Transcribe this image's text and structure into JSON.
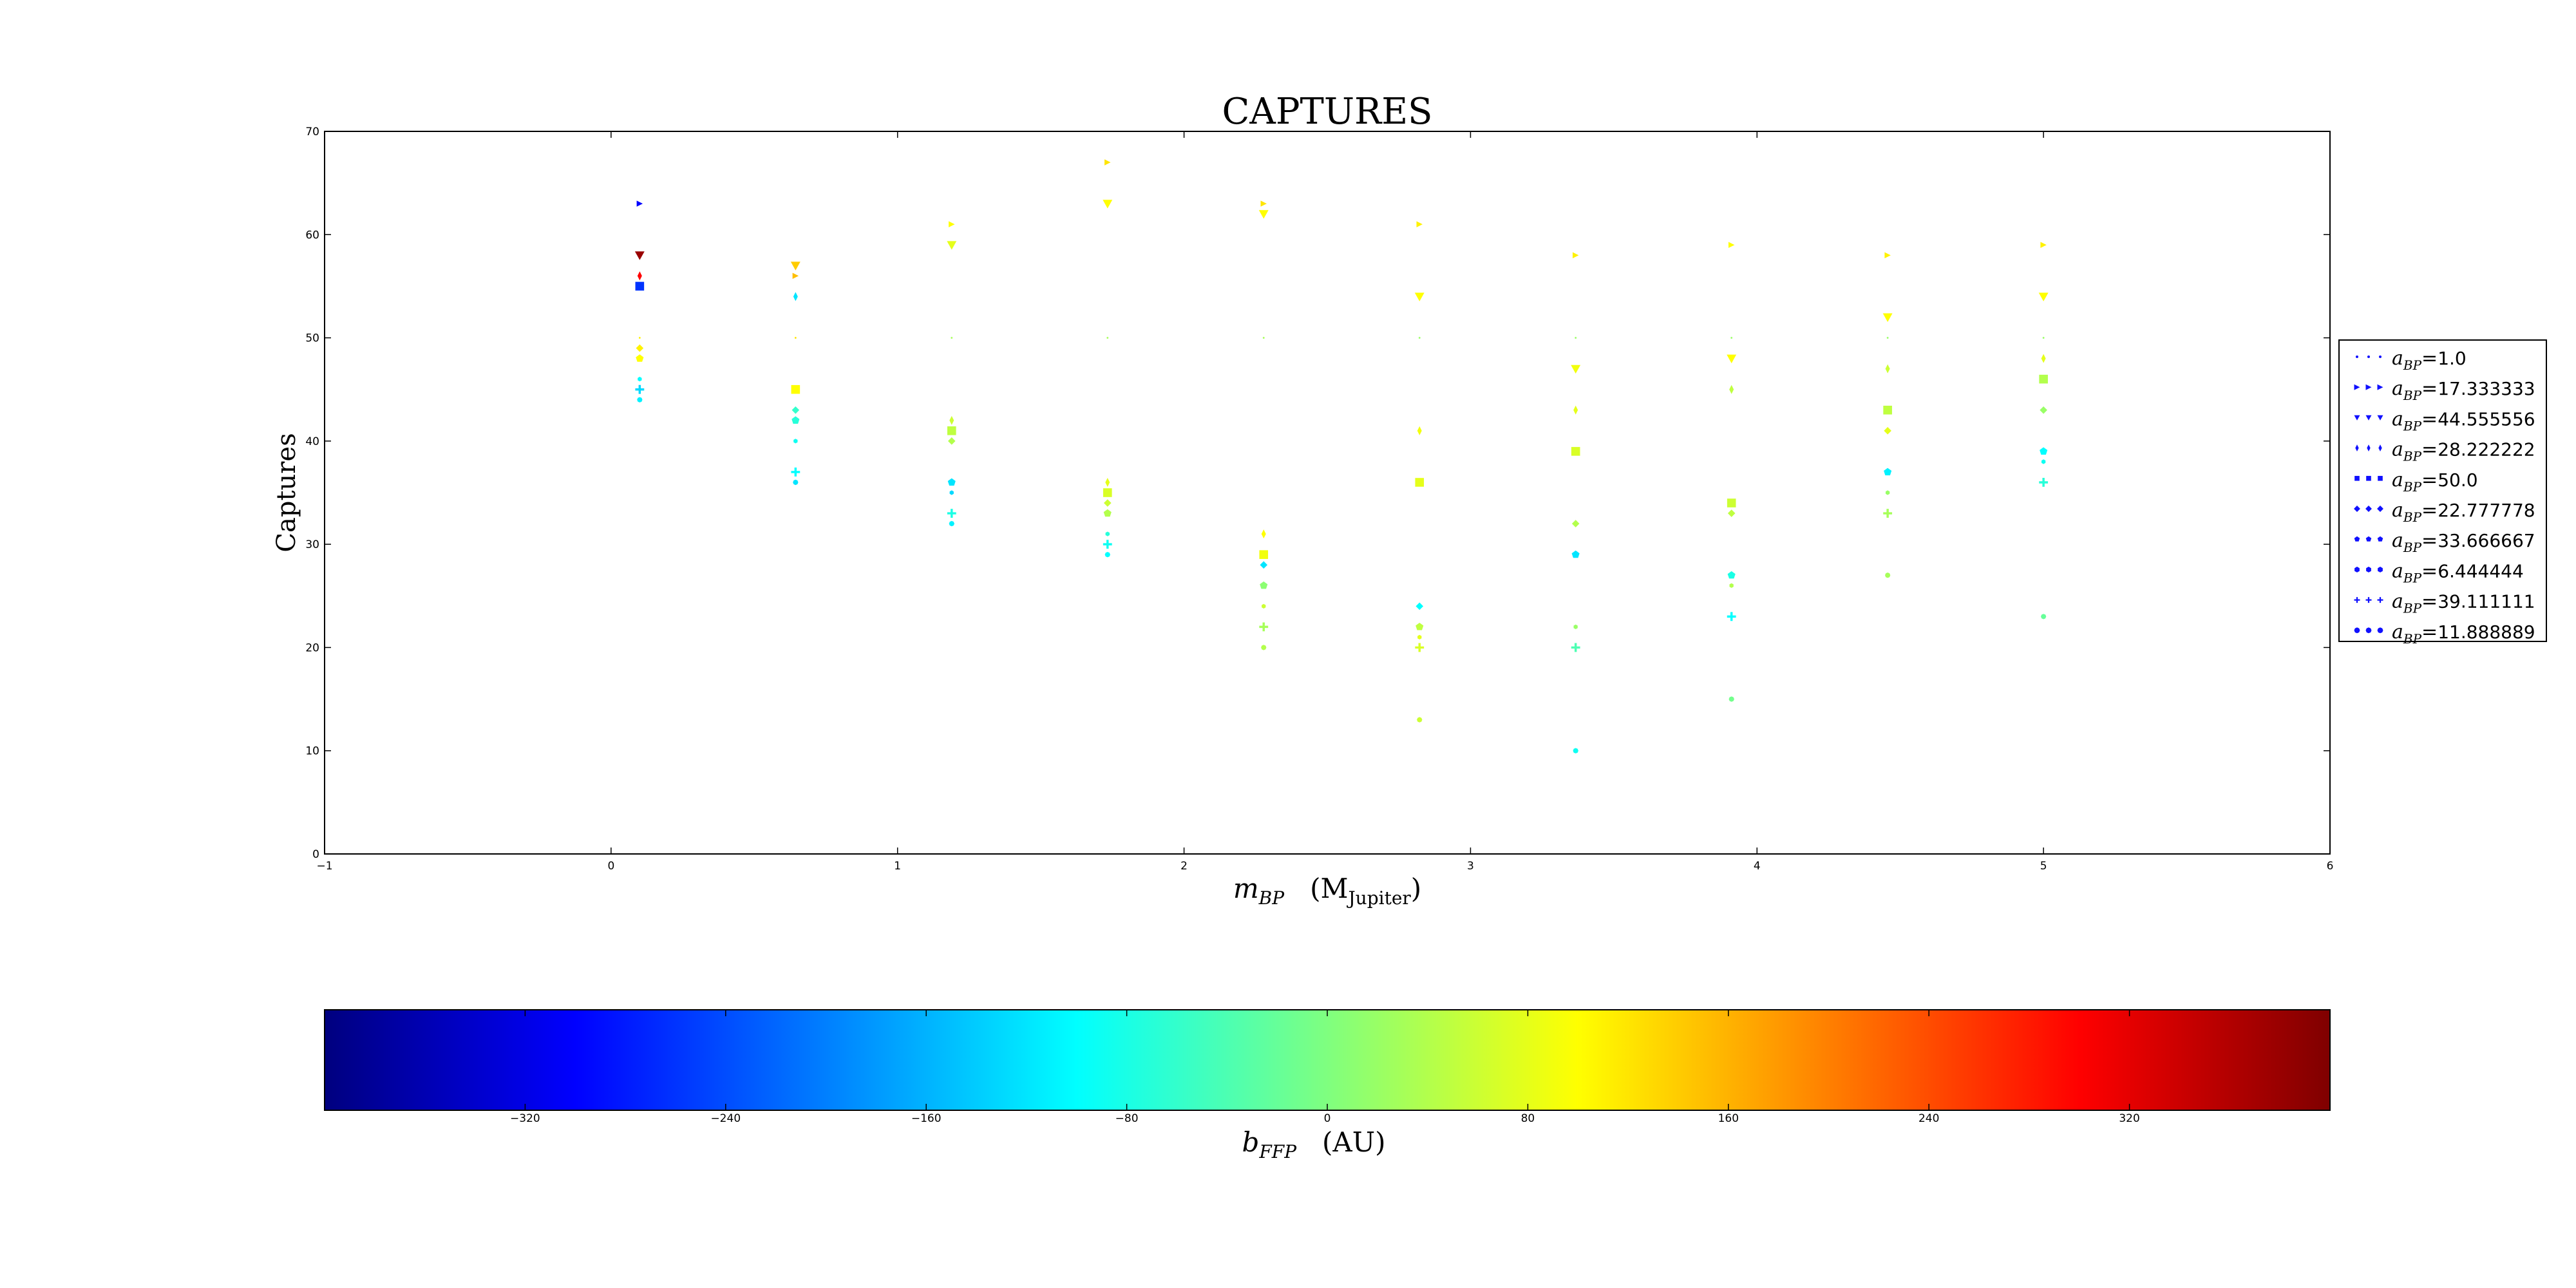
{
  "chart_data": {
    "type": "scatter",
    "title": "CAPTURES",
    "xlabel": {
      "symbol": "m",
      "sub": "BP",
      "unit_open": "(M",
      "unit_sub": "Jupiter",
      "unit_close": ")"
    },
    "ylabel": "Captures",
    "xlim": [
      -1,
      6
    ],
    "ylim": [
      0,
      70
    ],
    "xticks": [
      -1,
      0,
      1,
      2,
      3,
      4,
      5,
      6
    ],
    "yticks": [
      0,
      10,
      20,
      30,
      40,
      50,
      60,
      70
    ],
    "grid": false,
    "legend_position": "right-outside",
    "series": [
      {
        "name": "1.0",
        "marker": "point",
        "x": [
          0.1,
          0.644,
          1.189,
          1.733,
          2.278,
          2.822,
          3.367,
          3.911,
          4.456,
          5.0
        ],
        "y": [
          50,
          50,
          50,
          50,
          50,
          50,
          50,
          50,
          50,
          50
        ],
        "b": [
          110,
          120,
          30,
          30,
          30,
          20,
          20,
          20,
          20,
          20
        ]
      },
      {
        "name": "17.333333",
        "marker": "triangle-right",
        "x": [
          0.1,
          0.644,
          1.189,
          1.733,
          2.278,
          2.822,
          3.367,
          3.911,
          4.456,
          5.0
        ],
        "y": [
          63,
          56,
          61,
          67,
          63,
          61,
          58,
          59,
          58,
          59
        ],
        "b": [
          -300,
          150,
          100,
          120,
          120,
          110,
          110,
          100,
          110,
          110
        ]
      },
      {
        "name": "44.555556",
        "marker": "triangle-down",
        "x": [
          0.1,
          0.644,
          1.189,
          1.733,
          2.278,
          2.822,
          3.367,
          3.911,
          4.456,
          5.0
        ],
        "y": [
          58,
          57,
          59,
          63,
          62,
          54,
          47,
          48,
          52,
          54
        ],
        "b": [
          380,
          140,
          80,
          100,
          100,
          100,
          90,
          100,
          100,
          100
        ]
      },
      {
        "name": "28.222222",
        "marker": "thin-diamond",
        "x": [
          0.1,
          0.644,
          1.189,
          1.733,
          2.278,
          2.822,
          3.367,
          3.911,
          4.456,
          5.0
        ],
        "y": [
          56,
          54,
          42,
          36,
          31,
          41,
          43,
          45,
          47,
          48
        ],
        "b": [
          300,
          -120,
          60,
          80,
          100,
          90,
          80,
          50,
          60,
          80
        ]
      },
      {
        "name": "50.0",
        "marker": "square",
        "x": [
          0.1,
          0.644,
          1.189,
          1.733,
          2.278,
          2.822,
          3.367,
          3.911,
          4.456,
          5.0
        ],
        "y": [
          55,
          45,
          41,
          35,
          29,
          36,
          39,
          34,
          43,
          46
        ],
        "b": [
          -260,
          100,
          50,
          70,
          90,
          80,
          70,
          60,
          50,
          40
        ]
      },
      {
        "name": "22.777778",
        "marker": "diamond",
        "x": [
          0.1,
          0.644,
          1.189,
          1.733,
          2.278,
          2.822,
          3.367,
          3.911,
          4.456,
          5.0
        ],
        "y": [
          49,
          43,
          40,
          34,
          28,
          24,
          32,
          33,
          41,
          43
        ],
        "b": [
          110,
          -60,
          40,
          60,
          -120,
          -100,
          40,
          50,
          80,
          20
        ]
      },
      {
        "name": "33.666667",
        "marker": "pentagon",
        "x": [
          0.1,
          0.644,
          1.189,
          1.733,
          2.278,
          2.822,
          3.367,
          3.911,
          4.456,
          5.0
        ],
        "y": [
          48,
          42,
          36,
          33,
          26,
          22,
          29,
          27,
          37,
          39
        ],
        "b": [
          100,
          -70,
          -120,
          40,
          10,
          50,
          -120,
          -80,
          -110,
          -100
        ]
      },
      {
        "name": "6.444444",
        "marker": "hexagon",
        "x": [
          0.1,
          0.644,
          1.189,
          1.733,
          2.278,
          2.822,
          3.367,
          3.911,
          4.456,
          5.0
        ],
        "y": [
          46,
          40,
          35,
          31,
          24,
          21,
          22,
          26,
          35,
          38
        ],
        "b": [
          -100,
          -90,
          -130,
          -70,
          60,
          80,
          20,
          40,
          20,
          -90
        ]
      },
      {
        "name": "39.111111",
        "marker": "plus",
        "x": [
          0.1,
          0.644,
          1.189,
          1.733,
          2.278,
          2.822,
          3.367,
          3.911,
          4.456,
          5.0
        ],
        "y": [
          45,
          37,
          33,
          30,
          22,
          20,
          20,
          23,
          33,
          36
        ],
        "b": [
          -130,
          -100,
          -80,
          -90,
          30,
          70,
          -40,
          -100,
          30,
          -70
        ]
      },
      {
        "name": "11.888889",
        "marker": "octagon",
        "x": [
          0.1,
          0.644,
          1.189,
          1.733,
          2.278,
          2.822,
          3.367,
          3.911,
          4.456,
          5.0
        ],
        "y": [
          44,
          36,
          32,
          29,
          20,
          13,
          10,
          15,
          27,
          23
        ],
        "b": [
          -110,
          -120,
          -110,
          -100,
          40,
          60,
          -90,
          -10,
          30,
          -20
        ]
      }
    ],
    "legend_label_prefix": {
      "symbol": "a",
      "sub": "BP",
      "eq": "="
    },
    "legend_marker_color": "#1010ff",
    "colorbar": {
      "label": {
        "symbol": "b",
        "sub": "FFP",
        "unit": "(AU)"
      },
      "range": [
        -400,
        400
      ],
      "ticks": [
        -320,
        -240,
        -160,
        -80,
        0,
        80,
        160,
        240,
        320
      ],
      "colormap": "jet"
    }
  }
}
